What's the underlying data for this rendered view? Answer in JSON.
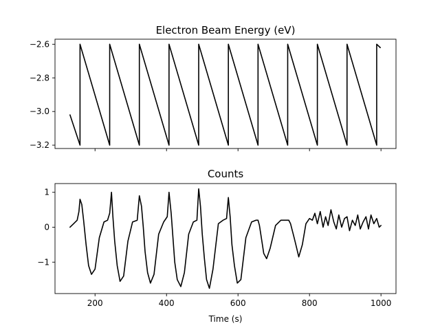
{
  "chart_data": [
    {
      "type": "line",
      "title": "Electron Beam Energy (eV)",
      "xlabel": "",
      "ylabel": "",
      "xlim": [
        88,
        1042
      ],
      "ylim": [
        -3.22,
        -2.57
      ],
      "xticks": [
        200,
        400,
        600,
        800,
        1000
      ],
      "show_xtick_labels": false,
      "yticks": [
        -3.2,
        -3.0,
        -2.8,
        -2.6
      ],
      "ytick_labels": [
        "−3.2",
        "−3.0",
        "−2.8",
        "−2.6"
      ],
      "grid": false,
      "series": [
        {
          "color": "#000000",
          "x": [
            130,
            158,
            158,
            241,
            241,
            324,
            324,
            407,
            407,
            490,
            490,
            573,
            573,
            656,
            656,
            739,
            739,
            822,
            822,
            905,
            905,
            988,
            988,
            998
          ],
          "y": [
            -3.02,
            -3.2,
            -2.6,
            -3.2,
            -2.6,
            -3.2,
            -2.6,
            -3.2,
            -2.6,
            -3.2,
            -2.6,
            -3.2,
            -2.6,
            -3.2,
            -2.6,
            -3.2,
            -2.6,
            -3.2,
            -2.6,
            -3.2,
            -2.6,
            -3.2,
            -2.6,
            -2.62
          ]
        }
      ]
    },
    {
      "type": "line",
      "title": "Counts",
      "xlabel": "Time (s)",
      "ylabel": "",
      "xlim": [
        88,
        1042
      ],
      "ylim": [
        -1.9,
        1.25
      ],
      "xticks": [
        200,
        400,
        600,
        800,
        1000
      ],
      "xtick_labels": [
        "200",
        "400",
        "600",
        "800",
        "1000"
      ],
      "show_xtick_labels": true,
      "yticks": [
        -1,
        0,
        1
      ],
      "ytick_labels": [
        "−1",
        "0",
        "1"
      ],
      "grid": false,
      "series": [
        {
          "color": "#000000",
          "x": [
            130,
            140,
            150,
            155,
            158,
            163,
            168,
            175,
            182,
            190,
            200,
            212,
            225,
            235,
            241,
            246,
            250,
            255,
            262,
            270,
            280,
            292,
            305,
            318,
            324,
            330,
            335,
            340,
            347,
            355,
            365,
            378,
            392,
            402,
            407,
            413,
            418,
            423,
            430,
            440,
            450,
            462,
            475,
            485,
            490,
            495,
            500,
            506,
            512,
            520,
            530,
            545,
            558,
            568,
            573,
            578,
            583,
            590,
            598,
            608,
            622,
            638,
            650,
            656,
            660,
            666,
            672,
            680,
            690,
            705,
            720,
            735,
            742,
            747,
            752,
            757,
            763,
            770,
            780,
            790,
            800,
            808,
            815,
            822,
            830,
            838,
            845,
            852,
            860,
            868,
            875,
            882,
            890,
            898,
            905,
            912,
            920,
            928,
            935,
            942,
            950,
            958,
            965,
            972,
            980,
            988,
            995,
            1000
          ],
          "y": [
            0.0,
            0.1,
            0.2,
            0.45,
            0.8,
            0.65,
            0.2,
            -0.5,
            -1.1,
            -1.35,
            -1.2,
            -0.3,
            0.15,
            0.2,
            0.4,
            1.0,
            0.3,
            -0.4,
            -1.1,
            -1.55,
            -1.4,
            -0.4,
            0.15,
            0.2,
            0.9,
            0.6,
            0.0,
            -0.7,
            -1.3,
            -1.6,
            -1.35,
            -0.2,
            0.15,
            0.3,
            1.0,
            0.4,
            -0.3,
            -1.0,
            -1.5,
            -1.7,
            -1.3,
            -0.2,
            0.15,
            0.2,
            1.1,
            0.6,
            -0.2,
            -0.9,
            -1.5,
            -1.75,
            -1.2,
            0.1,
            0.2,
            0.25,
            0.85,
            0.3,
            -0.5,
            -1.1,
            -1.6,
            -1.5,
            -0.3,
            0.15,
            0.2,
            0.2,
            0.05,
            -0.35,
            -0.75,
            -0.9,
            -0.6,
            0.05,
            0.2,
            0.2,
            0.2,
            0.1,
            -0.1,
            -0.3,
            -0.55,
            -0.85,
            -0.5,
            0.1,
            0.25,
            0.2,
            0.4,
            0.1,
            0.45,
            0.0,
            0.3,
            0.05,
            0.5,
            0.15,
            -0.05,
            0.35,
            0.0,
            0.25,
            0.3,
            -0.1,
            0.2,
            0.05,
            0.35,
            -0.05,
            0.15,
            0.3,
            -0.05,
            0.35,
            0.1,
            0.25,
            0.0,
            0.05
          ]
        }
      ]
    }
  ]
}
